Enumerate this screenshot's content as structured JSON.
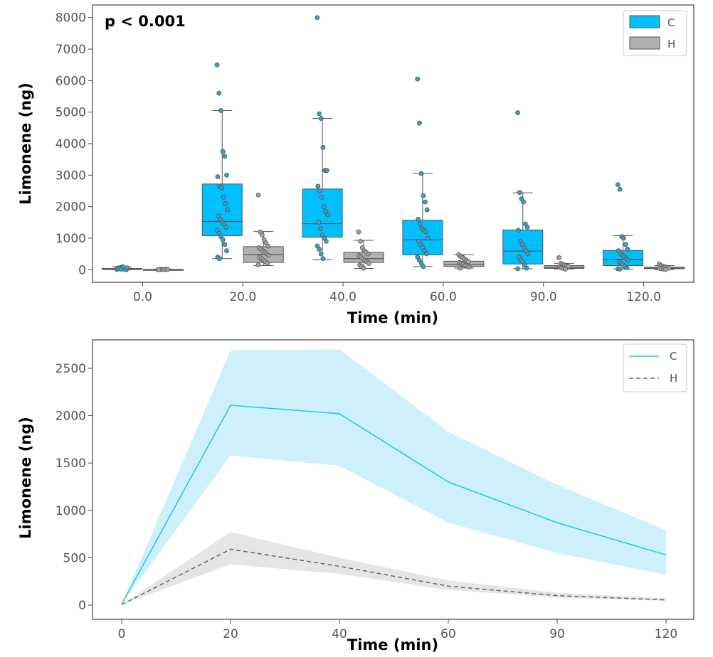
{
  "chart_data": [
    {
      "type": "box",
      "xlabel": "Time (min)",
      "ylabel": "Limonene (ng)",
      "annotation": "p < 0.001",
      "categories": [
        "0.0",
        "20.0",
        "40.0",
        "60.0",
        "90.0",
        "120.0"
      ],
      "yticks": [
        0,
        1000,
        2000,
        3000,
        4000,
        5000,
        6000,
        7000,
        8000
      ],
      "ylim": [
        -400,
        8400
      ],
      "legend": {
        "position": "top-right"
      },
      "series": [
        {
          "name": "C",
          "color": "#00bfff",
          "pointColor": "#3aa0c2",
          "boxes": [
            {
              "min": 0,
              "q1": 10,
              "median": 25,
              "q3": 40,
              "max": 90
            },
            {
              "min": 350,
              "q1": 1080,
              "median": 1530,
              "q3": 2720,
              "max": 5050
            },
            {
              "min": 320,
              "q1": 1030,
              "median": 1460,
              "q3": 2560,
              "max": 4800
            },
            {
              "min": 100,
              "q1": 470,
              "median": 950,
              "q3": 1570,
              "max": 3060
            },
            {
              "min": 30,
              "q1": 180,
              "median": 590,
              "q3": 1260,
              "max": 2440
            },
            {
              "min": 20,
              "q1": 130,
              "median": 330,
              "q3": 610,
              "max": 1080
            }
          ],
          "points": [
            [
              10,
              40,
              70,
              90,
              20,
              5,
              55,
              30,
              15,
              80,
              0,
              60
            ],
            [
              6500,
              5600,
              5050,
              3750,
              3600,
              3000,
              2950,
              2650,
              2600,
              2300,
              2100,
              1900,
              1700,
              1600,
              1500,
              1450,
              1350,
              1250,
              1150,
              1050,
              950,
              800,
              600,
              400,
              350
            ],
            [
              8000,
              4950,
              4800,
              3880,
              3150,
              3150,
              2650,
              2500,
              2300,
              2000,
              1850,
              1750,
              1500,
              1300,
              1100,
              1000,
              900,
              750,
              650,
              500,
              350
            ],
            [
              6050,
              4650,
              3050,
              2350,
              2150,
              1900,
              1600,
              1450,
              1300,
              1250,
              1200,
              1000,
              900,
              800,
              700,
              600,
              500,
              400,
              300,
              200,
              100
            ],
            [
              4980,
              2450,
              2250,
              2150,
              1450,
              1350,
              1250,
              900,
              800,
              700,
              600,
              500,
              400,
              300,
              250,
              150,
              50,
              30
            ],
            [
              2700,
              2550,
              1050,
              1000,
              800,
              650,
              600,
              500,
              450,
              400,
              350,
              300,
              250,
              200,
              150,
              100,
              60,
              30,
              20
            ]
          ]
        },
        {
          "name": "H",
          "color": "#b0b0b0",
          "pointColor": "#a3a3a3",
          "boxes": [
            {
              "min": 0,
              "q1": 0,
              "median": 5,
              "q3": 10,
              "max": 15
            },
            {
              "min": 130,
              "q1": 230,
              "median": 480,
              "q3": 730,
              "max": 1210
            },
            {
              "min": 40,
              "q1": 230,
              "median": 350,
              "q3": 550,
              "max": 930
            },
            {
              "min": 50,
              "q1": 100,
              "median": 160,
              "q3": 270,
              "max": 480
            },
            {
              "min": 20,
              "q1": 40,
              "median": 70,
              "q3": 130,
              "max": 200
            },
            {
              "min": 10,
              "q1": 30,
              "median": 50,
              "q3": 80,
              "max": 130
            }
          ],
          "points": [
            [
              0,
              5,
              10,
              0,
              15,
              5,
              0
            ],
            [
              2370,
              1200,
              1100,
              950,
              850,
              750,
              700,
              650,
              600,
              550,
              500,
              450,
              400,
              350,
              300,
              250,
              200,
              150
            ],
            [
              1200,
              900,
              700,
              600,
              550,
              500,
              450,
              400,
              350,
              300,
              250,
              200,
              150,
              100,
              50
            ],
            [
              480,
              420,
              380,
              340,
              300,
              260,
              230,
              200,
              170,
              140,
              110,
              80,
              50
            ],
            [
              380,
              200,
              170,
              140,
              120,
              100,
              80,
              60,
              40,
              20
            ],
            [
              180,
              130,
              110,
              90,
              70,
              50,
              40,
              30,
              20,
              10
            ]
          ]
        }
      ]
    },
    {
      "type": "line",
      "xlabel": "Time (min)",
      "ylabel": "Limonene (ng)",
      "x": [
        "0",
        "20",
        "40",
        "60",
        "90",
        "120"
      ],
      "yticks": [
        0,
        500,
        1000,
        1500,
        2000,
        2500
      ],
      "ylim": [
        -150,
        2800
      ],
      "legend": {
        "position": "top-right"
      },
      "series": [
        {
          "name": "C",
          "color": "#1ec8e3",
          "fill": "#c8eefa",
          "dashed": false,
          "values": [
            10,
            2110,
            2020,
            1300,
            870,
            530
          ],
          "lower": [
            10,
            1580,
            1470,
            870,
            550,
            320
          ],
          "upper": [
            10,
            2690,
            2700,
            1830,
            1270,
            790
          ]
        },
        {
          "name": "H",
          "color": "#666666",
          "fill": "#e2e2e2",
          "dashed": true,
          "values": [
            5,
            590,
            410,
            200,
            100,
            55
          ],
          "lower": [
            5,
            430,
            330,
            160,
            80,
            45
          ],
          "upper": [
            5,
            770,
            500,
            260,
            130,
            70
          ]
        }
      ]
    }
  ]
}
